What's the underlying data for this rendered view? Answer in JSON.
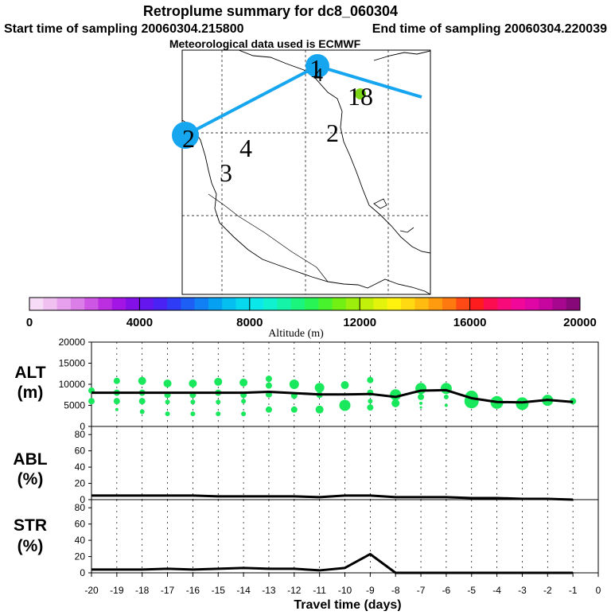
{
  "title": "Retroplume summary for dc8_060304",
  "subtitle": {
    "start": "Start time of sampling 20060304.215800",
    "end": "End time of sampling 20060304.220039"
  },
  "met_note": "Meteorological data used is ECMWF",
  "map": {
    "day_markers": [
      {
        "label": "1",
        "day": 1
      },
      {
        "label": "4",
        "day": 4
      },
      {
        "label": "18",
        "day": 18
      },
      {
        "label": "2",
        "day": 2
      },
      {
        "label": "2",
        "day": 2
      },
      {
        "label": "4",
        "day": 4
      },
      {
        "label": "3",
        "day": 3
      }
    ]
  },
  "colorbar": {
    "label": "Altitude (m)",
    "range": [
      0,
      20000
    ],
    "tick_labels": [
      "0",
      "4000",
      "8000",
      "12000",
      "16000",
      "20000"
    ],
    "colors": [
      "#f6dcf6",
      "#efc0f0",
      "#e6a0ee",
      "#dc7ee8",
      "#ce56e4",
      "#bc2fe0",
      "#a215e4",
      "#8410e8",
      "#6516ef",
      "#4a22f4",
      "#2f3cf5",
      "#1d5ef5",
      "#1180f4",
      "#06a0f3",
      "#05bff0",
      "#07d8ee",
      "#0be8ea",
      "#10f2cf",
      "#14f3a8",
      "#1bf57e",
      "#28f555",
      "#48f22d",
      "#72ef13",
      "#9cef0c",
      "#c2f00a",
      "#e4f30b",
      "#fff20e",
      "#ffd912",
      "#ffbb10",
      "#ff9b0e",
      "#ff7911",
      "#ff4a16",
      "#ff1c1f",
      "#fb0d50",
      "#f80a7a",
      "#f1079a",
      "#e006a6",
      "#c6069f",
      "#a7068f",
      "#860879"
    ]
  },
  "chart_data": [
    {
      "type": "line",
      "panel": "altitude",
      "ylabel": "ALT\n(m)",
      "ylim": [
        0,
        20000
      ],
      "yticks": [
        0,
        5000,
        10000,
        15000,
        20000
      ],
      "x": [
        -20,
        -19,
        -18,
        -17,
        -16,
        -15,
        -14,
        -13,
        -12,
        -11,
        -10,
        -9,
        -8,
        -7,
        -6,
        -5,
        -4,
        -3,
        -2,
        -1
      ],
      "mean": [
        8000,
        8000,
        8000,
        8000,
        8000,
        8000,
        8000,
        8200,
        7900,
        7600,
        7600,
        7700,
        7000,
        8500,
        8600,
        6700,
        5800,
        5700,
        6300,
        5800
      ],
      "scatter": [
        {
          "x": -20,
          "y": 8500,
          "s": 4
        },
        {
          "x": -20,
          "y": 6000,
          "s": 4
        },
        {
          "x": -19,
          "y": 10800,
          "s": 4
        },
        {
          "x": -19,
          "y": 8000,
          "s": 4
        },
        {
          "x": -19,
          "y": 6000,
          "s": 4
        },
        {
          "x": -19,
          "y": 4000,
          "s": 2
        },
        {
          "x": -18,
          "y": 10800,
          "s": 5
        },
        {
          "x": -18,
          "y": 8000,
          "s": 4
        },
        {
          "x": -18,
          "y": 6000,
          "s": 4
        },
        {
          "x": -18,
          "y": 3500,
          "s": 3
        },
        {
          "x": -17,
          "y": 10200,
          "s": 5
        },
        {
          "x": -17,
          "y": 7500,
          "s": 4
        },
        {
          "x": -17,
          "y": 5800,
          "s": 3
        },
        {
          "x": -17,
          "y": 3000,
          "s": 3
        },
        {
          "x": -16,
          "y": 10200,
          "s": 5
        },
        {
          "x": -16,
          "y": 7500,
          "s": 4
        },
        {
          "x": -16,
          "y": 5800,
          "s": 3
        },
        {
          "x": -16,
          "y": 3000,
          "s": 3
        },
        {
          "x": -15,
          "y": 10600,
          "s": 5
        },
        {
          "x": -15,
          "y": 8000,
          "s": 4
        },
        {
          "x": -15,
          "y": 5800,
          "s": 3
        },
        {
          "x": -15,
          "y": 3000,
          "s": 3
        },
        {
          "x": -14,
          "y": 10400,
          "s": 5
        },
        {
          "x": -14,
          "y": 7500,
          "s": 4
        },
        {
          "x": -14,
          "y": 6000,
          "s": 3
        },
        {
          "x": -14,
          "y": 3000,
          "s": 3
        },
        {
          "x": -13,
          "y": 11300,
          "s": 4
        },
        {
          "x": -13,
          "y": 9700,
          "s": 4
        },
        {
          "x": -13,
          "y": 7600,
          "s": 4
        },
        {
          "x": -13,
          "y": 4000,
          "s": 4
        },
        {
          "x": -12,
          "y": 10000,
          "s": 6
        },
        {
          "x": -12,
          "y": 7300,
          "s": 4
        },
        {
          "x": -12,
          "y": 4000,
          "s": 4
        },
        {
          "x": -11,
          "y": 9200,
          "s": 6
        },
        {
          "x": -11,
          "y": 7500,
          "s": 4
        },
        {
          "x": -11,
          "y": 4000,
          "s": 5
        },
        {
          "x": -10,
          "y": 9800,
          "s": 5
        },
        {
          "x": -10,
          "y": 5000,
          "s": 7
        },
        {
          "x": -9,
          "y": 11000,
          "s": 4
        },
        {
          "x": -9,
          "y": 8000,
          "s": 4
        },
        {
          "x": -9,
          "y": 6000,
          "s": 3
        },
        {
          "x": -9,
          "y": 4500,
          "s": 4
        },
        {
          "x": -8,
          "y": 7500,
          "s": 7
        },
        {
          "x": -8,
          "y": 5500,
          "s": 5
        },
        {
          "x": -7,
          "y": 9000,
          "s": 7
        },
        {
          "x": -7,
          "y": 7000,
          "s": 4
        },
        {
          "x": -7,
          "y": 5500,
          "s": 2
        },
        {
          "x": -7,
          "y": 4500,
          "s": 1.5
        },
        {
          "x": -6,
          "y": 9000,
          "s": 7
        },
        {
          "x": -6,
          "y": 7000,
          "s": 3
        },
        {
          "x": -6,
          "y": 5000,
          "s": 2
        },
        {
          "x": -5,
          "y": 7000,
          "s": 8
        },
        {
          "x": -5,
          "y": 6000,
          "s": 9
        },
        {
          "x": -4,
          "y": 5700,
          "s": 8
        },
        {
          "x": -3,
          "y": 5400,
          "s": 8
        },
        {
          "x": -2,
          "y": 6200,
          "s": 7
        },
        {
          "x": -1,
          "y": 6000,
          "s": 4
        }
      ]
    },
    {
      "type": "line",
      "panel": "abl",
      "ylabel": "ABL\n(%)",
      "ylim": [
        0,
        90
      ],
      "yticks": [
        0,
        20,
        40,
        60,
        80
      ],
      "x": [
        -20,
        -19,
        -18,
        -17,
        -16,
        -15,
        -14,
        -13,
        -12,
        -11,
        -10,
        -9,
        -8,
        -7,
        -6,
        -5,
        -4,
        -3,
        -2,
        -1
      ],
      "values": [
        5,
        5,
        5,
        5,
        5,
        4,
        4,
        4,
        4,
        3,
        5,
        5,
        3,
        3,
        3,
        2,
        2,
        1,
        1,
        0
      ]
    },
    {
      "type": "line",
      "panel": "str",
      "ylabel": "STR\n(%)",
      "ylim": [
        0,
        90
      ],
      "yticks": [
        0,
        20,
        40,
        60,
        80
      ],
      "x": [
        -20,
        -19,
        -18,
        -17,
        -16,
        -15,
        -14,
        -13,
        -12,
        -11,
        -10,
        -9,
        -8,
        -7,
        -6,
        -5,
        -4,
        -3,
        -2,
        -1
      ],
      "values": [
        4,
        4,
        4,
        5,
        4,
        5,
        6,
        5,
        5,
        3,
        6,
        23,
        0,
        0,
        0,
        0,
        0,
        0,
        0,
        0
      ]
    }
  ],
  "x_axis": {
    "label": "Travel time (days)",
    "ticks": [
      "-20",
      "-19",
      "-18",
      "-17",
      "-16",
      "-15",
      "-14",
      "-13",
      "-12",
      "-11",
      "-10",
      "-9",
      "-8",
      "-7",
      "-6",
      "-5",
      "-4",
      "-3",
      "-2",
      "-1",
      "0"
    ]
  }
}
